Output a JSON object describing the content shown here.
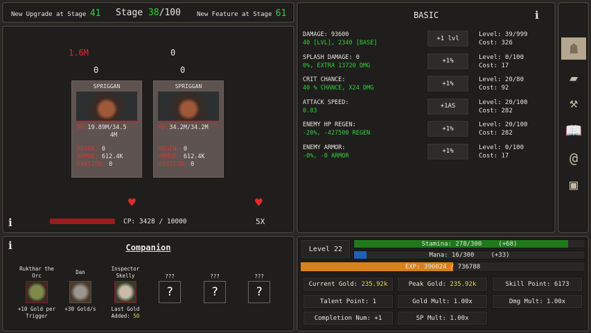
{
  "header": {
    "upgrade_label": "New Upgrade at Stage",
    "upgrade_stage": "41",
    "stage_label": "Stage",
    "stage_current": "38",
    "stage_max": "/100",
    "feature_label": "New Feature at Stage",
    "feature_stage": "61"
  },
  "battle": {
    "damage_a": "1.6M",
    "damage_b": "0",
    "count_a": "0",
    "count_b": "0",
    "enemies": [
      {
        "name": "SPRIGGAN",
        "hp_label": "HP:",
        "hp": "19.89M/34.5",
        "hp2": "4M",
        "regen_label": "REGEN:",
        "regen": "0",
        "armor_label": "ARMOR:",
        "armor": "612.4K",
        "evasion_label": "EVASION:",
        "evasion": "0"
      },
      {
        "name": "SPRIGGAN",
        "hp_label": "HP:",
        "hp": "34.2M/34.2M",
        "hp2": "",
        "regen_label": "REGEN:",
        "regen": "0",
        "armor_label": "ARMOR:",
        "armor": "612.4K",
        "evasion_label": "EVASION:",
        "evasion": "0"
      }
    ],
    "cp_text": "CP: 3428 / 10000",
    "multiplier": "5X",
    "info": "i"
  },
  "upgrades": {
    "title": "BASIC",
    "info": "i",
    "rows": [
      {
        "label": "DAMAGE: 93600",
        "detail": "40 [LVL], 2340 [BASE]",
        "button": "+1 lvl",
        "level": "Level: 39/999",
        "cost": "Cost: 326"
      },
      {
        "label": "SPLASH DAMAGE: 0",
        "detail": "0%, EXTRA 13720 DMG",
        "button": "+1%",
        "level": "Level: 0/100",
        "cost": "Cost: 17"
      },
      {
        "label": "CRIT CHANCE:",
        "detail": "40 % CHANCE, X24 DMG",
        "button": "+1%",
        "level": "Level: 20/80",
        "cost": "Cost: 92"
      },
      {
        "label": "ATTACK SPEED:",
        "detail": "0.83",
        "button": "+1AS",
        "level": "Level: 20/100",
        "cost": "Cost: 282"
      },
      {
        "label": "ENEMY HP REGEN:",
        "detail": "-20%, -427500 REGEN",
        "button": "+1%",
        "level": "Level: 20/100",
        "cost": "Cost: 282"
      },
      {
        "label": "ENEMY ARMOR:",
        "detail": "-0%, -0 ARMOR",
        "button": "+1%",
        "level": "Level: 0/100",
        "cost": "Cost: 17"
      }
    ]
  },
  "sidebar": {
    "icons": [
      "helmet-icon",
      "scroll-icon",
      "anvil-icon",
      "book-icon",
      "spiral-icon",
      "chest-icon"
    ]
  },
  "companion": {
    "title": "Companion",
    "info": "i",
    "members": [
      {
        "name": "Rukthar the Orc",
        "desc": "+10 Gold per Trigger"
      },
      {
        "name": "Dan",
        "desc": "+30 Gold/s"
      },
      {
        "name": "Inspector Skelly",
        "desc": "Last Gold Added:",
        "value": "50"
      },
      {
        "name": "???",
        "q": "?"
      },
      {
        "name": "???",
        "q": "?"
      },
      {
        "name": "???",
        "q": "?"
      }
    ]
  },
  "stats": {
    "level": "Level 22",
    "stamina": {
      "text": "Stamina: 278/300",
      "bonus": "(+68)",
      "current": 278,
      "max": 300,
      "color": "#1f7a1c"
    },
    "mana": {
      "text": "Mana: 16/300",
      "bonus": "(+33)",
      "current": 16,
      "max": 300,
      "color": "#1f5fb8"
    },
    "exp": {
      "text": "EXP: 396024 / 736788",
      "current": 396024,
      "max": 736788,
      "color": "#d8801a"
    },
    "current_gold_label": "Current Gold:",
    "current_gold": "235.92k",
    "peak_gold_label": "Peak Gold:",
    "peak_gold": "235.92k",
    "skill_point": "Skill Point: 6173",
    "talent_point": "Talent Point: 1",
    "gold_mult": "Gold Mult: 1.00x",
    "dmg_mult": "Dmg Mult: 1.00x",
    "completion": "Completion Num: +1",
    "sp_mult": "SP Mult: 1.00x"
  }
}
